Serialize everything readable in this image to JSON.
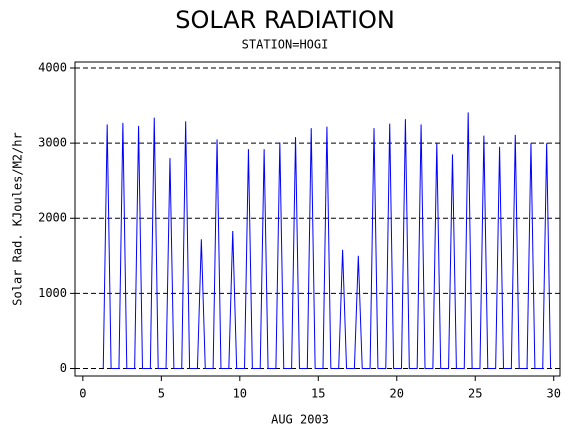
{
  "chart_data": {
    "type": "line",
    "title": "SOLAR RADIATION",
    "subtitle": "STATION=HOGI",
    "xlabel": "AUG 2003",
    "ylabel": "Solar Rad. KJoules/M2/hr",
    "series": [
      {
        "color": "#0000ff",
        "x": [
          1.3,
          1.55,
          1.8,
          2.3,
          2.55,
          2.8,
          3.3,
          3.55,
          3.8,
          4.3,
          4.55,
          4.8,
          5.3,
          5.55,
          5.8,
          6.3,
          6.55,
          6.8,
          7.3,
          7.55,
          7.8,
          8.3,
          8.55,
          8.8,
          9.3,
          9.55,
          9.8,
          10.3,
          10.55,
          10.8,
          11.3,
          11.55,
          11.8,
          12.3,
          12.55,
          12.8,
          13.3,
          13.55,
          13.8,
          14.3,
          14.55,
          14.8,
          15.3,
          15.55,
          15.8,
          16.3,
          16.55,
          16.8,
          17.3,
          17.55,
          17.8,
          18.3,
          18.55,
          18.8,
          19.3,
          19.55,
          19.8,
          20.3,
          20.55,
          20.8,
          21.3,
          21.55,
          21.8,
          22.3,
          22.55,
          22.8,
          23.3,
          23.55,
          23.8,
          24.3,
          24.55,
          24.8,
          25.3,
          25.55,
          25.8,
          26.3,
          26.55,
          26.8,
          27.3,
          27.55,
          27.8,
          28.3,
          28.55,
          28.8,
          29.3,
          29.55,
          29.8
        ],
        "values": [
          0,
          3250,
          0,
          0,
          3270,
          0,
          0,
          3230,
          0,
          0,
          3340,
          0,
          0,
          2800,
          0,
          0,
          3290,
          0,
          0,
          1720,
          0,
          0,
          3050,
          0,
          0,
          1830,
          0,
          0,
          2920,
          0,
          0,
          2920,
          0,
          0,
          3010,
          0,
          0,
          3080,
          0,
          0,
          3200,
          0,
          0,
          3220,
          0,
          0,
          1580,
          0,
          0,
          1500,
          0,
          0,
          3200,
          0,
          0,
          3260,
          0,
          0,
          3320,
          0,
          0,
          3250,
          0,
          0,
          3000,
          0,
          0,
          2850,
          0,
          0,
          3410,
          0,
          0,
          3100,
          0,
          0,
          2950,
          0,
          0,
          3110,
          0,
          0,
          3000,
          0,
          0,
          3000,
          0
        ]
      }
    ],
    "xlim": [
      -0.5,
      30.4
    ],
    "xticks": [
      0,
      5,
      10,
      15,
      20,
      25,
      30
    ],
    "ylim": [
      -100,
      4080
    ],
    "yticks": [
      0,
      1000,
      2000,
      3000,
      4000
    ],
    "grid": true
  }
}
